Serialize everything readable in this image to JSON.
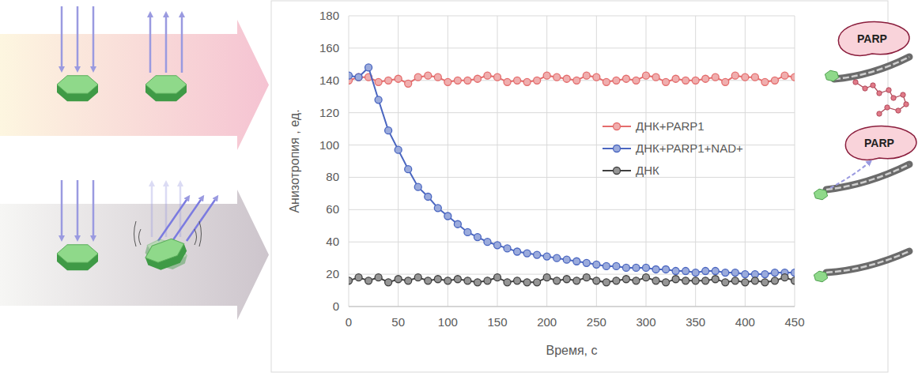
{
  "chart_data": {
    "type": "line",
    "x_label": "Время, с",
    "y_label": "Анизотропия , ед.",
    "x": [
      0,
      10,
      20,
      30,
      40,
      50,
      60,
      70,
      80,
      90,
      100,
      110,
      120,
      130,
      140,
      150,
      160,
      170,
      180,
      190,
      200,
      210,
      220,
      230,
      240,
      250,
      260,
      270,
      280,
      290,
      300,
      310,
      320,
      330,
      340,
      350,
      360,
      370,
      380,
      390,
      400,
      410,
      420,
      430,
      440,
      450
    ],
    "series": [
      {
        "name": "ДНК+PARP1",
        "color": "#e46c6c",
        "marker": "circle",
        "values": [
          140,
          142,
          142,
          139,
          140,
          141,
          138,
          142,
          143,
          142,
          139,
          140,
          140,
          141,
          143,
          142,
          139,
          140,
          139,
          140,
          143,
          142,
          141,
          140,
          143,
          142,
          139,
          140,
          141,
          140,
          143,
          142,
          139,
          141,
          140,
          140,
          141,
          142,
          139,
          143,
          142,
          142,
          139,
          140,
          143,
          142
        ]
      },
      {
        "name": "ДНК+PARP1+NAD+",
        "color": "#4a66c0",
        "marker": "circle",
        "values": [
          143,
          142,
          148,
          128,
          109,
          97,
          85,
          74,
          68,
          61,
          56,
          51,
          46,
          43,
          40,
          38,
          36,
          34,
          33,
          32,
          31,
          30,
          29,
          28,
          27,
          26,
          25,
          25,
          24,
          24,
          24,
          23,
          23,
          22,
          22,
          21,
          22,
          22,
          21,
          21,
          20,
          20,
          20,
          21,
          21,
          21
        ]
      },
      {
        "name": "ДНК",
        "color": "#404040",
        "marker": "circle",
        "values": [
          16,
          18,
          16,
          18,
          15,
          17,
          16,
          18,
          16,
          17,
          16,
          17,
          16,
          15,
          16,
          18,
          15,
          16,
          15,
          15,
          18,
          16,
          17,
          16,
          18,
          16,
          15,
          16,
          17,
          16,
          18,
          16,
          15,
          17,
          16,
          16,
          16,
          17,
          15,
          16,
          15,
          16,
          15,
          16,
          18,
          16
        ]
      }
    ],
    "xlim": [
      0,
      450
    ],
    "xticks": [
      0,
      50,
      100,
      150,
      200,
      250,
      300,
      350,
      400,
      450
    ],
    "ylim": [
      0,
      180
    ],
    "yticks": [
      0,
      20,
      40,
      60,
      80,
      100,
      120,
      140,
      160,
      180
    ],
    "grid": true,
    "legend": "right"
  },
  "illustration": {
    "labels": [
      "PARP",
      "PARP"
    ]
  }
}
